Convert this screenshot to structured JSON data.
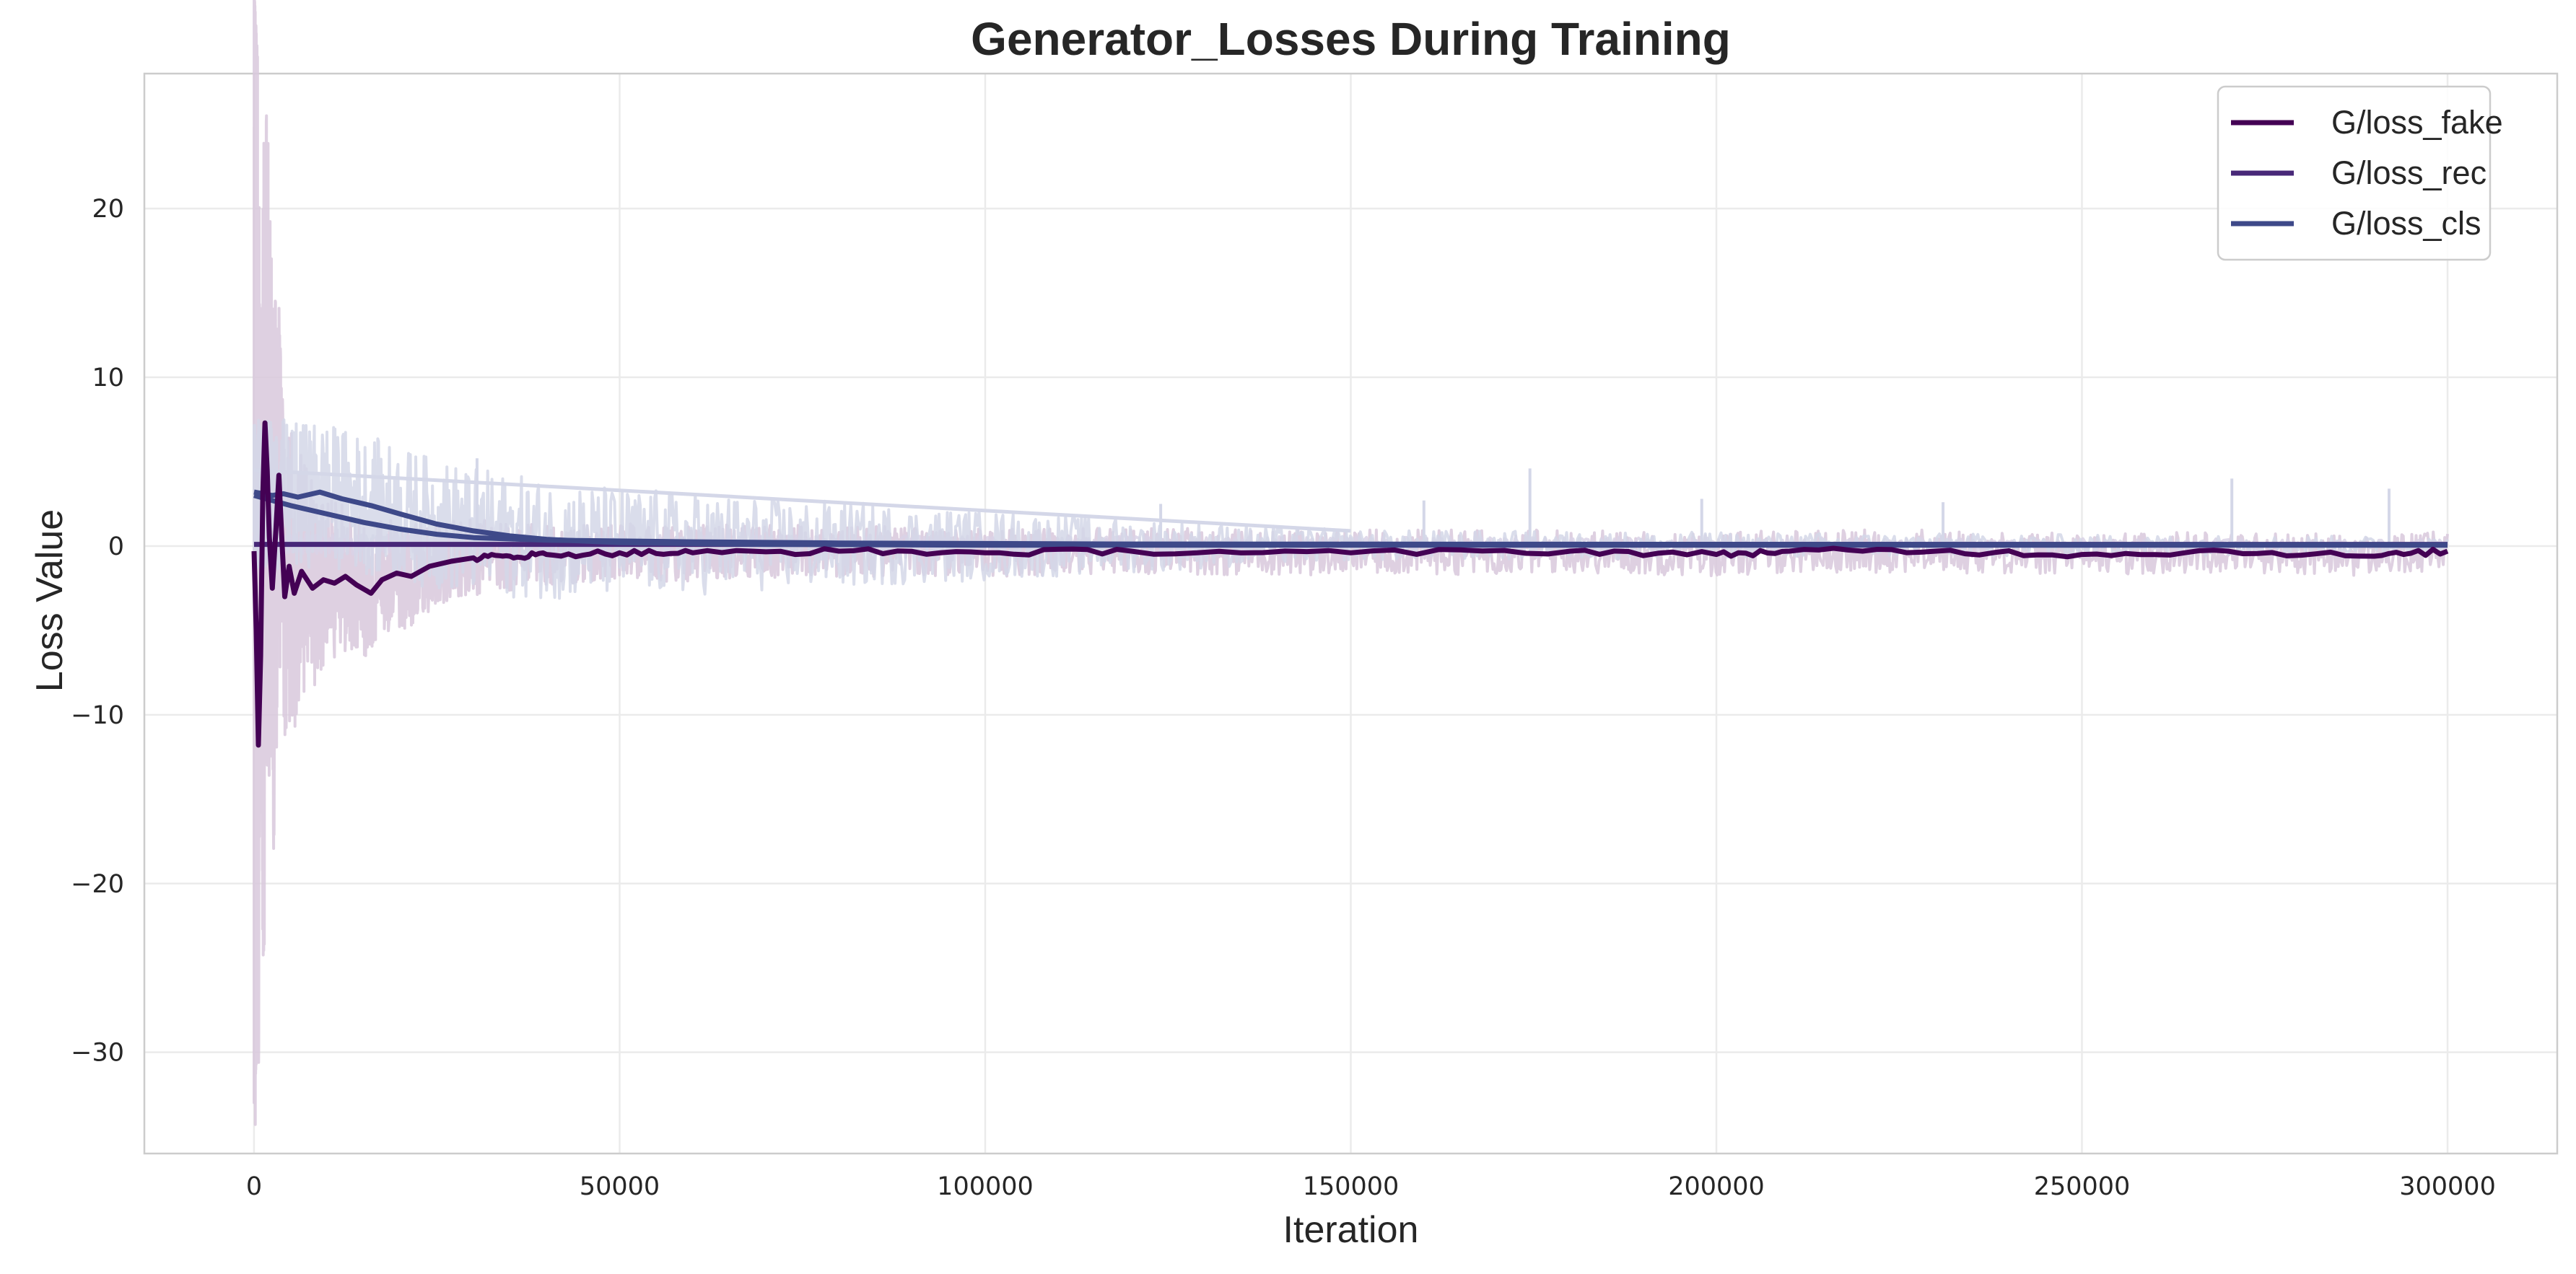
{
  "chart_data": {
    "type": "line",
    "title": "Generator_Losses During Training",
    "xlabel": "Iteration",
    "ylabel": "Loss Value",
    "xlim": [
      -15000,
      315000
    ],
    "ylim": [
      -36,
      28
    ],
    "x_ticks": [
      0,
      50000,
      100000,
      150000,
      200000,
      250000,
      300000
    ],
    "x_tick_labels": [
      "0",
      "50000",
      "100000",
      "150000",
      "200000",
      "250000",
      "300000"
    ],
    "y_ticks": [
      20,
      10,
      0,
      -10,
      -20,
      -30
    ],
    "y_tick_labels": [
      "20",
      "10",
      "0",
      "−10",
      "−20",
      "−30"
    ],
    "grid": true,
    "legend_position": "top-right",
    "series": [
      {
        "name": "G/loss_fake",
        "color": "#440154",
        "raw_color": "#d8c8dc",
        "smoothed": [
          [
            0,
            -0.3
          ],
          [
            300,
            -5
          ],
          [
            600,
            -11.8
          ],
          [
            900,
            -6.5
          ],
          [
            1200,
            3
          ],
          [
            1500,
            7.3
          ],
          [
            1800,
            4.5
          ],
          [
            2100,
            0.5
          ],
          [
            2500,
            -2.5
          ],
          [
            3000,
            1
          ],
          [
            3400,
            4.2
          ],
          [
            3800,
            0.5
          ],
          [
            4200,
            -3
          ],
          [
            4800,
            -1.2
          ],
          [
            5500,
            -2.8
          ],
          [
            6500,
            -1.5
          ],
          [
            8000,
            -2.5
          ],
          [
            9500,
            -2
          ],
          [
            11000,
            -2.2
          ],
          [
            12500,
            -1.8
          ],
          [
            14000,
            -2.3
          ],
          [
            16000,
            -2.8
          ],
          [
            17500,
            -2
          ],
          [
            19500,
            -1.6
          ],
          [
            21500,
            -1.8
          ],
          [
            24000,
            -1.2
          ],
          [
            27000,
            -0.9
          ],
          [
            30000,
            -0.7
          ],
          [
            35000,
            -0.6
          ],
          [
            40000,
            -0.5
          ],
          [
            50000,
            -0.4
          ],
          [
            60000,
            -0.4
          ],
          [
            80000,
            -0.3
          ],
          [
            100000,
            -0.4
          ],
          [
            120000,
            -0.3
          ],
          [
            150000,
            -0.4
          ],
          [
            180000,
            -0.3
          ],
          [
            200000,
            -0.5
          ],
          [
            210000,
            -0.3
          ],
          [
            230000,
            -0.3
          ],
          [
            250000,
            -0.5
          ],
          [
            270000,
            -0.3
          ],
          [
            290000,
            -0.6
          ],
          [
            300000,
            -0.3
          ]
        ],
        "raw_extent": [
          [
            0,
            -33
          ],
          [
            600,
            -28
          ],
          [
            1200,
            24.5
          ],
          [
            2000,
            21
          ],
          [
            3000,
            15
          ],
          [
            4000,
            10
          ],
          [
            6000,
            8
          ],
          [
            10000,
            5
          ],
          [
            15000,
            4
          ],
          [
            25000,
            2.5
          ],
          [
            40000,
            1.8
          ],
          [
            70000,
            1.6
          ],
          [
            100000,
            1.4
          ],
          [
            300000,
            1.2
          ]
        ]
      },
      {
        "name": "G/loss_rec",
        "color": "#482878",
        "raw_color": "#d9d2e6",
        "smoothed": [
          [
            0,
            0.1
          ],
          [
            300000,
            0.1
          ]
        ],
        "raw_extent": [
          [
            0,
            0.6
          ],
          [
            300000,
            0.3
          ]
        ]
      },
      {
        "name": "G/loss_cls",
        "color": "#3e4989",
        "raw_color": "#d4d7e8",
        "smoothed": [
          [
            0,
            3.2
          ],
          [
            2500,
            3
          ],
          [
            4000,
            3.1
          ],
          [
            6000,
            2.9
          ],
          [
            9000,
            3.2
          ],
          [
            12000,
            2.8
          ],
          [
            16000,
            2.4
          ],
          [
            20000,
            1.9
          ],
          [
            25000,
            1.3
          ],
          [
            30000,
            0.9
          ],
          [
            35000,
            0.6
          ],
          [
            40000,
            0.4
          ],
          [
            50000,
            0.2
          ],
          [
            70000,
            0.1
          ],
          [
            100000,
            0.05
          ],
          [
            300000,
            0.05
          ]
        ],
        "smoothed_secondary": [
          [
            0,
            3
          ],
          [
            5000,
            2.4
          ],
          [
            10000,
            1.9
          ],
          [
            15000,
            1.4
          ],
          [
            20000,
            1
          ],
          [
            25000,
            0.7
          ],
          [
            30000,
            0.5
          ],
          [
            40000,
            0.35
          ],
          [
            60000,
            0.25
          ],
          [
            80000,
            0.18
          ],
          [
            120000,
            0.12
          ],
          [
            300000,
            0.08
          ]
        ],
        "raw_extent": [
          [
            0,
            4.5
          ],
          [
            150000,
            0.9
          ],
          [
            300000,
            0.5
          ]
        ]
      }
    ],
    "raw_spikes": [
      [
        30500,
        5.2
      ],
      [
        174500,
        4.6
      ],
      [
        270500,
        4
      ],
      [
        292000,
        3.4
      ],
      [
        198000,
        2.8
      ],
      [
        231000,
        2.6
      ],
      [
        124000,
        2.5
      ],
      [
        160000,
        2.7
      ]
    ]
  }
}
